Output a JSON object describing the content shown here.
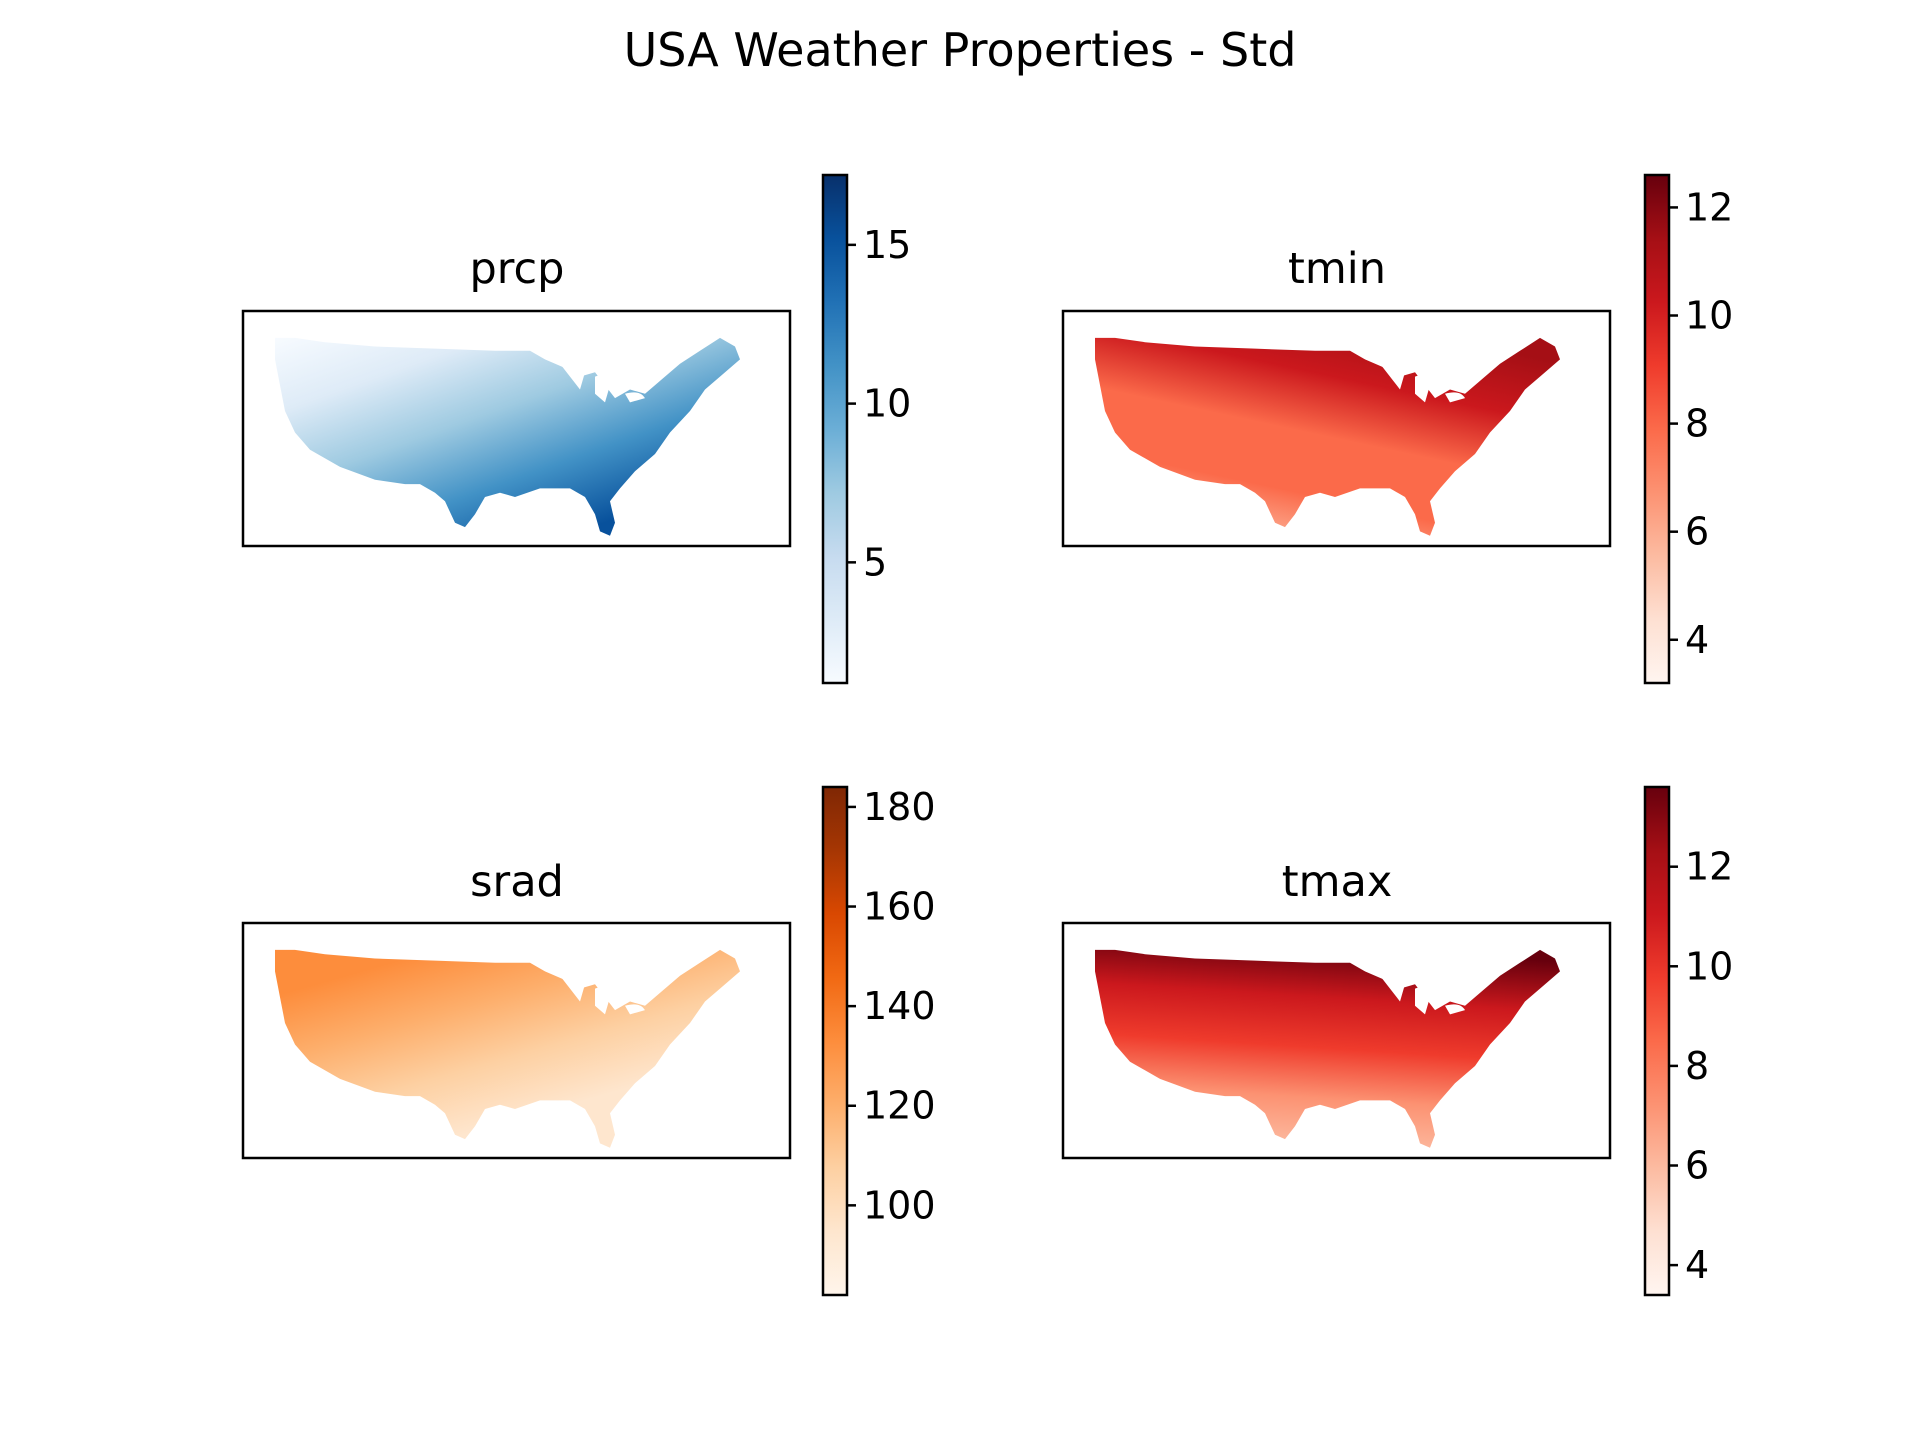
{
  "figure": {
    "title": "USA Weather Properties - Std"
  },
  "panels": [
    {
      "id": "prcp",
      "title": "prcp",
      "colormap": "Blues",
      "colors": [
        "#f7fbff",
        "#deebf7",
        "#c6dbef",
        "#9ecae1",
        "#6baed6",
        "#4292c6",
        "#2171b5",
        "#08519c",
        "#08306b"
      ],
      "range": [
        1.2,
        17.2
      ],
      "ticks": [
        5,
        10,
        15
      ],
      "tick_labels": [
        "5",
        "10",
        "15"
      ]
    },
    {
      "id": "tmin",
      "title": "tmin",
      "colormap": "Reds",
      "colors": [
        "#fff5f0",
        "#fee0d2",
        "#fcbba1",
        "#fc9272",
        "#fb6a4a",
        "#ef3b2c",
        "#cb181d",
        "#a50f15",
        "#67000d"
      ],
      "range": [
        3.2,
        12.6
      ],
      "ticks": [
        4,
        6,
        8,
        10,
        12
      ],
      "tick_labels": [
        "4",
        "6",
        "8",
        "10",
        "12"
      ]
    },
    {
      "id": "srad",
      "title": "srad",
      "colormap": "Oranges",
      "colors": [
        "#fff5eb",
        "#fee6ce",
        "#fdd0a2",
        "#fdae6b",
        "#fd8d3c",
        "#f16913",
        "#d94801",
        "#a63603",
        "#7f2704"
      ],
      "range": [
        82,
        184
      ],
      "ticks": [
        100,
        120,
        140,
        160,
        180
      ],
      "tick_labels": [
        "100",
        "120",
        "140",
        "160",
        "180"
      ]
    },
    {
      "id": "tmax",
      "title": "tmax",
      "colormap": "Reds",
      "colors": [
        "#fff5f0",
        "#fee0d2",
        "#fcbba1",
        "#fc9272",
        "#fb6a4a",
        "#ef3b2c",
        "#cb181d",
        "#a50f15",
        "#67000d"
      ],
      "range": [
        3.4,
        13.6
      ],
      "ticks": [
        4,
        6,
        8,
        10,
        12
      ],
      "tick_labels": [
        "4",
        "6",
        "8",
        "10",
        "12"
      ]
    }
  ]
}
